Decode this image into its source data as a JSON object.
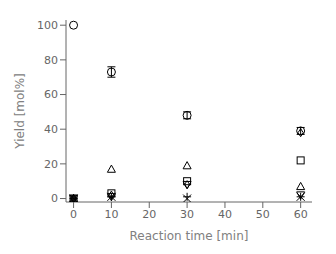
{
  "chart_data": {
    "type": "scatter",
    "xlabel": "Reaction time [min]",
    "ylabel": "Yield [mol%]",
    "xlim": [
      -2,
      63
    ],
    "ylim": [
      -2,
      103
    ],
    "xticks": [
      0,
      10,
      20,
      30,
      40,
      50,
      60
    ],
    "yticks": [
      0,
      20,
      40,
      60,
      80,
      100
    ],
    "grid": false,
    "series": [
      {
        "marker": "circle",
        "color": "black",
        "x": [
          0,
          10,
          30,
          60
        ],
        "values": [
          100,
          73,
          48,
          39
        ],
        "errors": [
          0,
          3,
          2,
          2
        ]
      },
      {
        "marker": "square",
        "color": "black",
        "x": [
          0,
          10,
          30,
          60
        ],
        "values": [
          0,
          3,
          10,
          22
        ]
      },
      {
        "marker": "triangle_up",
        "color": "black",
        "x": [
          0,
          10,
          30,
          60
        ],
        "values": [
          0,
          17,
          19,
          7
        ]
      },
      {
        "marker": "diamond",
        "color": "black",
        "x": [
          0,
          10,
          30,
          60
        ],
        "values": [
          0,
          2,
          8,
          38
        ]
      },
      {
        "marker": "x",
        "color": "black",
        "x": [
          0,
          10,
          30,
          60
        ],
        "values": [
          0,
          1,
          0,
          1
        ]
      },
      {
        "marker": "triangle_down",
        "color": "black",
        "x": [
          0,
          10,
          30,
          60
        ],
        "values": [
          0,
          1,
          8,
          2
        ]
      },
      {
        "marker": "plus",
        "color": "black",
        "x": [
          0,
          10,
          30,
          60
        ],
        "values": [
          0,
          1,
          1,
          1
        ]
      }
    ]
  }
}
